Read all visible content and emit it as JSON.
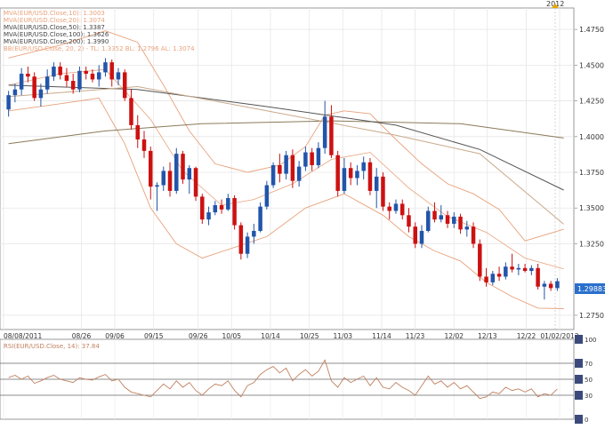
{
  "marker_year": "2012",
  "colors": {
    "up": "#2255aa",
    "down": "#cc1111",
    "band": "#e8a27c",
    "mva10": "#e8a27c",
    "mva20": "#e8a27c",
    "mva50": "#c9a98a",
    "mva100": "#555555",
    "mva200": "#8a7a5a",
    "rsi": "#c08060",
    "price_box": "#2a6fcc"
  },
  "legend": [
    {
      "text": "MVA(EUR/USD.Close,10): 1.3003",
      "color": "#e8a27c"
    },
    {
      "text": "MVA(EUR/USD.Close,20): 1.3074",
      "color": "#e8a27c"
    },
    {
      "text": "MVA(EUR/USD.Close,50): 1.3387",
      "color": "#444444"
    },
    {
      "text": "MVA(EUR/USD.Close,100): 1.3626",
      "color": "#444444"
    },
    {
      "text": "MVA(EUR/USD.Close,200): 1.3990",
      "color": "#444444"
    },
    {
      "text": "BB(EUR/USD.Close, 20, 2) -  TL: 1.3352  BL: 1.2796  AL: 1.3074",
      "color": "#e8a27c"
    }
  ],
  "current_price": "1.29883",
  "rsi_label": "RSI(EUR/USD.Close, 14): 37.84",
  "chart_data": {
    "type": "candlestick",
    "instrument": "EUR/USD",
    "ylim": [
      1.265,
      1.49
    ],
    "yticks": [
      "1.4750",
      "1.4500",
      "1.4250",
      "1.4000",
      "1.3750",
      "1.3500",
      "1.3250",
      "1.2750"
    ],
    "xticks": [
      "08/08/2011",
      "08/26",
      "09/06",
      "09/15",
      "09/26",
      "10/05",
      "10/14",
      "10/25",
      "11/03",
      "11/14",
      "11/23",
      "12/02",
      "12/13",
      "12/22",
      "01/02/2012"
    ],
    "candles": [
      [
        1.419,
        1.432,
        1.414,
        1.429
      ],
      [
        1.429,
        1.437,
        1.424,
        1.433
      ],
      [
        1.433,
        1.448,
        1.429,
        1.444
      ],
      [
        1.444,
        1.449,
        1.438,
        1.442
      ],
      [
        1.442,
        1.445,
        1.425,
        1.427
      ],
      [
        1.427,
        1.437,
        1.421,
        1.433
      ],
      [
        1.433,
        1.447,
        1.43,
        1.442
      ],
      [
        1.442,
        1.452,
        1.439,
        1.449
      ],
      [
        1.449,
        1.452,
        1.44,
        1.443
      ],
      [
        1.443,
        1.448,
        1.435,
        1.439
      ],
      [
        1.439,
        1.444,
        1.43,
        1.433
      ],
      [
        1.433,
        1.449,
        1.431,
        1.446
      ],
      [
        1.446,
        1.449,
        1.44,
        1.444
      ],
      [
        1.444,
        1.447,
        1.438,
        1.44
      ],
      [
        1.44,
        1.45,
        1.435,
        1.445
      ],
      [
        1.445,
        1.455,
        1.442,
        1.452
      ],
      [
        1.452,
        1.454,
        1.435,
        1.44
      ],
      [
        1.44,
        1.448,
        1.436,
        1.445
      ],
      [
        1.445,
        1.447,
        1.425,
        1.427
      ],
      [
        1.427,
        1.433,
        1.405,
        1.408
      ],
      [
        1.408,
        1.415,
        1.392,
        1.398
      ],
      [
        1.398,
        1.404,
        1.385,
        1.39
      ],
      [
        1.39,
        1.393,
        1.356,
        1.365
      ],
      [
        1.365,
        1.368,
        1.348,
        1.366
      ],
      [
        1.366,
        1.379,
        1.362,
        1.376
      ],
      [
        1.376,
        1.382,
        1.358,
        1.362
      ],
      [
        1.362,
        1.392,
        1.36,
        1.388
      ],
      [
        1.388,
        1.39,
        1.367,
        1.37
      ],
      [
        1.37,
        1.38,
        1.36,
        1.378
      ],
      [
        1.378,
        1.379,
        1.355,
        1.358
      ],
      [
        1.358,
        1.36,
        1.339,
        1.342
      ],
      [
        1.342,
        1.351,
        1.338,
        1.347
      ],
      [
        1.347,
        1.355,
        1.345,
        1.352
      ],
      [
        1.352,
        1.356,
        1.346,
        1.349
      ],
      [
        1.349,
        1.36,
        1.348,
        1.357
      ],
      [
        1.357,
        1.359,
        1.335,
        1.338
      ],
      [
        1.338,
        1.34,
        1.314,
        1.318
      ],
      [
        1.318,
        1.333,
        1.315,
        1.33
      ],
      [
        1.33,
        1.339,
        1.325,
        1.334
      ],
      [
        1.334,
        1.354,
        1.333,
        1.351
      ],
      [
        1.351,
        1.369,
        1.349,
        1.366
      ],
      [
        1.366,
        1.382,
        1.364,
        1.38
      ],
      [
        1.38,
        1.388,
        1.368,
        1.374
      ],
      [
        1.374,
        1.39,
        1.37,
        1.387
      ],
      [
        1.387,
        1.391,
        1.364,
        1.369
      ],
      [
        1.369,
        1.383,
        1.365,
        1.379
      ],
      [
        1.379,
        1.393,
        1.376,
        1.389
      ],
      [
        1.389,
        1.392,
        1.376,
        1.38
      ],
      [
        1.38,
        1.396,
        1.378,
        1.392
      ],
      [
        1.392,
        1.425,
        1.388,
        1.414
      ],
      [
        1.414,
        1.422,
        1.385,
        1.387
      ],
      [
        1.387,
        1.39,
        1.358,
        1.362
      ],
      [
        1.362,
        1.385,
        1.36,
        1.378
      ],
      [
        1.378,
        1.382,
        1.366,
        1.371
      ],
      [
        1.371,
        1.38,
        1.366,
        1.376
      ],
      [
        1.376,
        1.386,
        1.37,
        1.382
      ],
      [
        1.382,
        1.385,
        1.359,
        1.362
      ],
      [
        1.362,
        1.378,
        1.35,
        1.372
      ],
      [
        1.372,
        1.375,
        1.348,
        1.351
      ],
      [
        1.351,
        1.354,
        1.342,
        1.348
      ],
      [
        1.348,
        1.356,
        1.346,
        1.353
      ],
      [
        1.353,
        1.356,
        1.342,
        1.345
      ],
      [
        1.345,
        1.35,
        1.333,
        1.337
      ],
      [
        1.337,
        1.34,
        1.322,
        1.325
      ],
      [
        1.325,
        1.338,
        1.322,
        1.334
      ],
      [
        1.334,
        1.351,
        1.333,
        1.348
      ],
      [
        1.348,
        1.354,
        1.34,
        1.342
      ],
      [
        1.342,
        1.352,
        1.34,
        1.345
      ],
      [
        1.345,
        1.348,
        1.336,
        1.339
      ],
      [
        1.339,
        1.347,
        1.336,
        1.344
      ],
      [
        1.344,
        1.346,
        1.332,
        1.335
      ],
      [
        1.335,
        1.341,
        1.33,
        1.337
      ],
      [
        1.337,
        1.34,
        1.322,
        1.325
      ],
      [
        1.325,
        1.328,
        1.299,
        1.302
      ],
      [
        1.302,
        1.308,
        1.295,
        1.298
      ],
      [
        1.298,
        1.306,
        1.296,
        1.304
      ],
      [
        1.304,
        1.309,
        1.299,
        1.302
      ],
      [
        1.302,
        1.312,
        1.3,
        1.309
      ],
      [
        1.309,
        1.318,
        1.305,
        1.307
      ],
      [
        1.307,
        1.311,
        1.303,
        1.308
      ],
      [
        1.308,
        1.311,
        1.305,
        1.306
      ],
      [
        1.306,
        1.31,
        1.303,
        1.308
      ],
      [
        1.308,
        1.311,
        1.293,
        1.295
      ],
      [
        1.295,
        1.299,
        1.286,
        1.297
      ],
      [
        1.297,
        1.299,
        1.292,
        1.294
      ],
      [
        1.294,
        1.301,
        1.292,
        1.2988
      ]
    ],
    "mva50": [
      [
        0,
        1.428
      ],
      [
        20,
        1.435
      ],
      [
        40,
        1.418
      ],
      [
        60,
        1.401
      ],
      [
        73,
        1.388
      ],
      [
        86,
        1.3387
      ]
    ],
    "mva100": [
      [
        0,
        1.436
      ],
      [
        20,
        1.433
      ],
      [
        40,
        1.421
      ],
      [
        60,
        1.408
      ],
      [
        73,
        1.391
      ],
      [
        86,
        1.3626
      ]
    ],
    "mva200": [
      [
        0,
        1.395
      ],
      [
        15,
        1.404
      ],
      [
        30,
        1.409
      ],
      [
        50,
        1.411
      ],
      [
        70,
        1.409
      ],
      [
        86,
        1.399
      ]
    ],
    "bb_upper": [
      [
        0,
        1.455
      ],
      [
        8,
        1.464
      ],
      [
        15,
        1.474
      ],
      [
        20,
        1.466
      ],
      [
        24,
        1.436
      ],
      [
        28,
        1.404
      ],
      [
        32,
        1.381
      ],
      [
        37,
        1.375
      ],
      [
        42,
        1.38
      ],
      [
        46,
        1.393
      ],
      [
        49,
        1.415
      ],
      [
        52,
        1.418
      ],
      [
        56,
        1.416
      ],
      [
        60,
        1.398
      ],
      [
        64,
        1.381
      ],
      [
        68,
        1.367
      ],
      [
        72,
        1.36
      ],
      [
        76,
        1.349
      ],
      [
        80,
        1.327
      ],
      [
        86,
        1.3352
      ]
    ],
    "bb_lower": [
      [
        0,
        1.418
      ],
      [
        8,
        1.423
      ],
      [
        14,
        1.427
      ],
      [
        18,
        1.395
      ],
      [
        22,
        1.35
      ],
      [
        26,
        1.325
      ],
      [
        30,
        1.315
      ],
      [
        34,
        1.321
      ],
      [
        40,
        1.33
      ],
      [
        46,
        1.35
      ],
      [
        52,
        1.36
      ],
      [
        58,
        1.345
      ],
      [
        62,
        1.33
      ],
      [
        66,
        1.32
      ],
      [
        70,
        1.313
      ],
      [
        74,
        1.298
      ],
      [
        78,
        1.288
      ],
      [
        82,
        1.28
      ],
      [
        86,
        1.2796
      ]
    ],
    "bb_mid": [
      [
        0,
        1.436
      ],
      [
        8,
        1.444
      ],
      [
        15,
        1.447
      ],
      [
        22,
        1.412
      ],
      [
        27,
        1.376
      ],
      [
        33,
        1.352
      ],
      [
        38,
        1.356
      ],
      [
        44,
        1.367
      ],
      [
        50,
        1.384
      ],
      [
        56,
        1.389
      ],
      [
        62,
        1.364
      ],
      [
        68,
        1.344
      ],
      [
        74,
        1.333
      ],
      [
        80,
        1.315
      ],
      [
        86,
        1.3074
      ]
    ],
    "rsi_ylim": [
      0,
      100
    ],
    "rsi_ticks": [
      "100",
      "70",
      "50",
      "30",
      "0"
    ],
    "rsi": [
      52,
      55,
      50,
      54,
      45,
      48,
      52,
      55,
      50,
      48,
      46,
      52,
      50,
      49,
      53,
      56,
      48,
      50,
      40,
      34,
      32,
      30,
      28,
      36,
      44,
      38,
      48,
      40,
      46,
      36,
      30,
      38,
      44,
      42,
      48,
      36,
      28,
      42,
      46,
      56,
      62,
      66,
      58,
      64,
      48,
      56,
      62,
      54,
      60,
      74,
      48,
      40,
      52,
      46,
      50,
      54,
      42,
      52,
      40,
      38,
      46,
      40,
      36,
      30,
      42,
      54,
      44,
      48,
      40,
      46,
      38,
      42,
      34,
      26,
      28,
      34,
      32,
      40,
      36,
      38,
      34,
      38,
      28,
      32,
      30,
      37.84
    ]
  }
}
